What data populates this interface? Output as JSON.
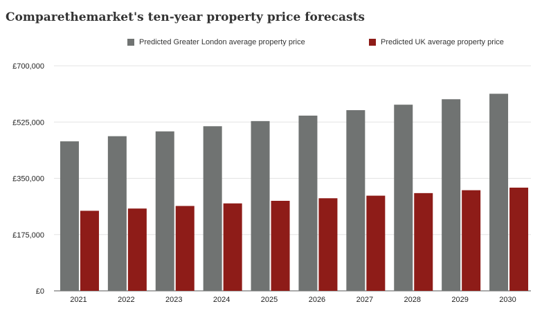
{
  "title": "Comparethemarket's ten-year property price forecasts",
  "colors": {
    "london": "#707372",
    "uk": "#8e1c18",
    "grid": "#e3e3e3",
    "axis": "#555555"
  },
  "chart_data": {
    "type": "bar",
    "categories": [
      "2021",
      "2022",
      "2023",
      "2024",
      "2025",
      "2026",
      "2027",
      "2028",
      "2029",
      "2030"
    ],
    "series": [
      {
        "name": "Predicted Greater London average property price",
        "values": [
          465000,
          481000,
          496000,
          512000,
          528000,
          545000,
          562000,
          579000,
          596000,
          613000
        ]
      },
      {
        "name": "Predicted UK average property price",
        "values": [
          249000,
          256000,
          264000,
          272000,
          280000,
          288000,
          296000,
          304000,
          313000,
          321000
        ]
      }
    ],
    "yticks": [
      0,
      175000,
      350000,
      525000,
      700000
    ],
    "yticklabels": [
      "£0",
      "£175,000",
      "£350,000",
      "£525,000",
      "£700,000"
    ],
    "ylim": [
      0,
      700000
    ],
    "grid": true,
    "legend": "top"
  }
}
